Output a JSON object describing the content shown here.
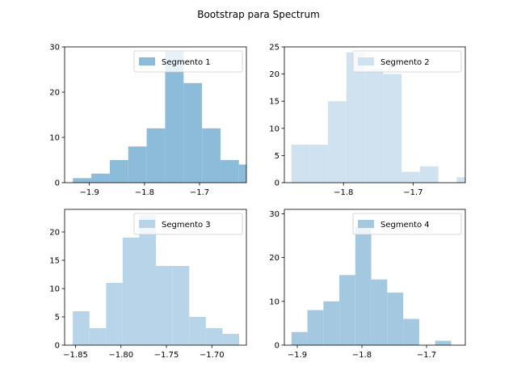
{
  "figure": {
    "title": "Bootstrap para Spectrum"
  },
  "chart_data": [
    {
      "type": "bar",
      "name": "Segmento 1",
      "color": "#8dbbda",
      "xlim": [
        -1.945,
        -1.615
      ],
      "ylim": [
        0,
        30
      ],
      "xticks": [
        -1.9,
        -1.8,
        -1.7
      ],
      "xtick_labels": [
        "−1.9",
        "−1.8",
        "−1.7"
      ],
      "yticks": [
        0,
        10,
        20,
        30
      ],
      "bin_edges": [
        -1.93,
        -1.8965,
        -1.863,
        -1.8295,
        -1.796,
        -1.7625,
        -1.729,
        -1.6955,
        -1.662,
        -1.6285,
        -1.595
      ],
      "counts": [
        1,
        2,
        5,
        8,
        12,
        29,
        22,
        12,
        5,
        4
      ],
      "legend_loc": "upper right"
    },
    {
      "type": "bar",
      "name": "Segmento 2",
      "color": "#d0e2ef",
      "xlim": [
        -1.885,
        -1.625
      ],
      "ylim": [
        0,
        25
      ],
      "xticks": [
        -1.8,
        -1.7
      ],
      "xtick_labels": [
        "−1.8",
        "−1.7"
      ],
      "yticks": [
        0,
        5,
        10,
        15,
        20,
        25
      ],
      "bin_edges": [
        -1.875,
        -1.8486,
        -1.8222,
        -1.7958,
        -1.7694,
        -1.743,
        -1.7166,
        -1.6902,
        -1.6638,
        -1.6374,
        -1.611
      ],
      "counts": [
        7,
        7,
        15,
        24,
        21,
        20,
        2,
        3,
        0,
        1
      ],
      "legend_loc": "upper right"
    },
    {
      "type": "bar",
      "name": "Segmento 3",
      "color": "#b8d4e8",
      "xlim": [
        -1.862,
        -1.662
      ],
      "ylim": [
        0,
        24
      ],
      "xticks": [
        -1.85,
        -1.8,
        -1.75,
        -1.7
      ],
      "xtick_labels": [
        "−1.85",
        "−1.80",
        "−1.75",
        "−1.70"
      ],
      "yticks": [
        0,
        5,
        10,
        15,
        20
      ],
      "bin_edges": [
        -1.853,
        -1.8347,
        -1.8164,
        -1.7981,
        -1.7798,
        -1.7615,
        -1.7432,
        -1.7249,
        -1.7066,
        -1.6883,
        -1.67
      ],
      "counts": [
        6,
        3,
        11,
        19,
        23,
        14,
        14,
        5,
        3,
        2
      ],
      "legend_loc": "upper right"
    },
    {
      "type": "bar",
      "name": "Segmento 4",
      "color": "#a5c8e1",
      "xlim": [
        -1.92,
        -1.64
      ],
      "ylim": [
        0,
        31
      ],
      "xticks": [
        -1.9,
        -1.8,
        -1.7
      ],
      "xtick_labels": [
        "−1.9",
        "−1.8",
        "−1.7"
      ],
      "yticks": [
        0,
        10,
        20,
        30
      ],
      "bin_edges": [
        -1.909,
        -1.8843,
        -1.8596,
        -1.8349,
        -1.8102,
        -1.7855,
        -1.7608,
        -1.7361,
        -1.7114,
        -1.6867,
        -1.662
      ],
      "counts": [
        3,
        8,
        10,
        16,
        27,
        15,
        12,
        6,
        0,
        1
      ],
      "legend_loc": "upper right"
    }
  ]
}
